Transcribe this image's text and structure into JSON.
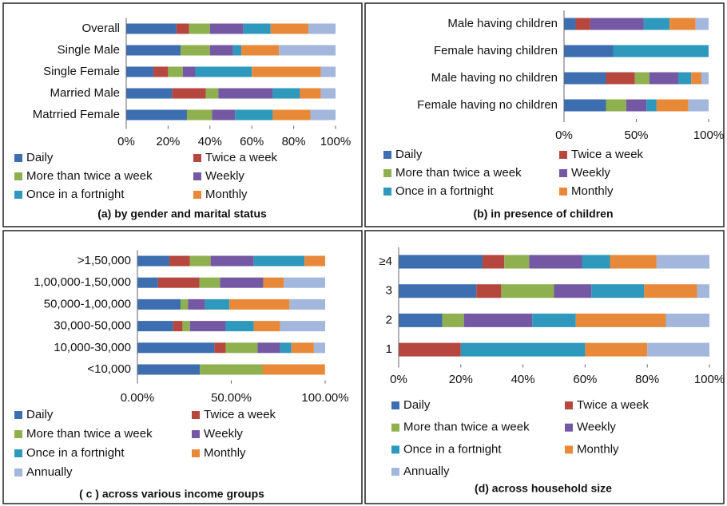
{
  "chart_data": [
    {
      "type": "bar",
      "orientation": "horizontal",
      "stacked": true,
      "title": "(a) by gender and marital status",
      "categories": [
        "Overall",
        "Single Male",
        "Single Female",
        "Married Male",
        "Matrried Female"
      ],
      "xlim": [
        0,
        100
      ],
      "xticks": [
        {
          "value": 0,
          "label": "0%"
        },
        {
          "value": 20,
          "label": "20%"
        },
        {
          "value": 40,
          "label": "40%"
        },
        {
          "value": 60,
          "label": "60%"
        },
        {
          "value": 80,
          "label": "80%"
        },
        {
          "value": 100,
          "label": "100%"
        }
      ],
      "series": [
        {
          "name": "Daily",
          "color": "#3d6eb0",
          "values": [
            24,
            26,
            13,
            22,
            29
          ]
        },
        {
          "name": "Twice a week",
          "color": "#b5473f",
          "values": [
            6,
            0,
            7,
            16,
            0
          ]
        },
        {
          "name": "More than twice a week",
          "color": "#8fb04f",
          "values": [
            10,
            14,
            7,
            6,
            12
          ]
        },
        {
          "name": "Weekly",
          "color": "#7558a3",
          "values": [
            16,
            11,
            6,
            26,
            11
          ]
        },
        {
          "name": "Once in a fortnight",
          "color": "#2e98bd",
          "values": [
            13,
            4,
            27,
            13,
            18
          ]
        },
        {
          "name": "Monthly",
          "color": "#e8893a",
          "values": [
            18,
            18,
            33,
            10,
            18
          ]
        },
        {
          "color": "#a3b6dc",
          "values": [
            13,
            27,
            7,
            7,
            12
          ]
        }
      ]
    },
    {
      "type": "bar",
      "orientation": "horizontal",
      "stacked": true,
      "title": "(b) in presence of children",
      "categories": [
        "Male having children",
        "Female having children",
        "Male having no children",
        "Female having no children"
      ],
      "xlim": [
        0,
        100
      ],
      "xticks": [
        {
          "value": 0,
          "label": "0%"
        },
        {
          "value": 50,
          "label": "50%"
        },
        {
          "value": 100,
          "label": "100%"
        }
      ],
      "series": [
        {
          "name": "Daily",
          "color": "#3d6eb0",
          "values": [
            8,
            34,
            29,
            29
          ]
        },
        {
          "name": "Twice a week",
          "color": "#b5473f",
          "values": [
            10,
            0,
            20,
            0
          ]
        },
        {
          "name": "More than twice a week",
          "color": "#8fb04f",
          "values": [
            0,
            0,
            10,
            14
          ]
        },
        {
          "name": "Weekly",
          "color": "#7558a3",
          "values": [
            37,
            0,
            20,
            14
          ]
        },
        {
          "name": "Once in a fortnight",
          "color": "#2e98bd",
          "values": [
            18,
            66,
            9,
            7
          ]
        },
        {
          "name": "Monthly",
          "color": "#e8893a",
          "values": [
            18,
            0,
            7,
            22
          ]
        },
        {
          "color": "#a3b6dc",
          "values": [
            9,
            0,
            5,
            14
          ]
        }
      ]
    },
    {
      "type": "bar",
      "orientation": "horizontal",
      "stacked": true,
      "title": "( c ) across various income groups",
      "categories": [
        ">1,50,000",
        "1,00,000-1,50,000",
        "50,000-1,00,000",
        "30,000-50,000",
        "10,000-30,000",
        "<10,000"
      ],
      "xlim": [
        0,
        100
      ],
      "xticks": [
        {
          "value": 0,
          "label": "0.00%"
        },
        {
          "value": 50,
          "label": "50.00%"
        },
        {
          "value": 100,
          "label": "100.00%"
        }
      ],
      "series": [
        {
          "name": "Daily",
          "color": "#3d6eb0",
          "values": [
            17,
            11,
            23,
            19,
            41,
            33.3
          ]
        },
        {
          "name": "Twice a week",
          "color": "#b5473f",
          "values": [
            11,
            22,
            0,
            5,
            6,
            0
          ]
        },
        {
          "name": "More than twice a week",
          "color": "#8fb04f",
          "values": [
            11,
            11,
            4,
            4,
            17,
            33.3
          ]
        },
        {
          "name": "Weekly",
          "color": "#7558a3",
          "values": [
            23,
            23,
            9,
            19,
            12,
            0
          ]
        },
        {
          "name": "Once in a fortnight",
          "color": "#2e98bd",
          "values": [
            27,
            0,
            13,
            15,
            6,
            0
          ]
        },
        {
          "name": "Monthly",
          "color": "#e8893a",
          "values": [
            11,
            11,
            32,
            14,
            12,
            33.3
          ]
        },
        {
          "name": "Annually",
          "color": "#a3b6dc",
          "values": [
            0,
            22,
            19,
            24,
            6,
            0
          ]
        }
      ]
    },
    {
      "type": "bar",
      "orientation": "horizontal",
      "stacked": true,
      "title": "(d) across household size",
      "categories": [
        "≥4",
        "3",
        "2",
        "1"
      ],
      "xlim": [
        0,
        100
      ],
      "xticks": [
        {
          "value": 0,
          "label": "0%"
        },
        {
          "value": 20,
          "label": "20%"
        },
        {
          "value": 40,
          "label": "40%"
        },
        {
          "value": 60,
          "label": "60%"
        },
        {
          "value": 80,
          "label": "80%"
        },
        {
          "value": 100,
          "label": "100%"
        }
      ],
      "series": [
        {
          "name": "Daily",
          "color": "#3d6eb0",
          "values": [
            27,
            25,
            14,
            0
          ]
        },
        {
          "name": "Twice a week",
          "color": "#b5473f",
          "values": [
            7,
            8,
            0,
            20
          ]
        },
        {
          "name": "More than twice a week",
          "color": "#8fb04f",
          "values": [
            8,
            17,
            7,
            0
          ]
        },
        {
          "name": "Weekly",
          "color": "#7558a3",
          "values": [
            17,
            12,
            22,
            0
          ]
        },
        {
          "name": "Once in a fortnight",
          "color": "#2e98bd",
          "values": [
            9,
            17,
            14,
            40
          ]
        },
        {
          "name": "Monthly",
          "color": "#e8893a",
          "values": [
            15,
            17,
            29,
            20
          ]
        },
        {
          "name": "Annually",
          "color": "#a3b6dc",
          "values": [
            17,
            4,
            14,
            20
          ]
        }
      ]
    }
  ]
}
